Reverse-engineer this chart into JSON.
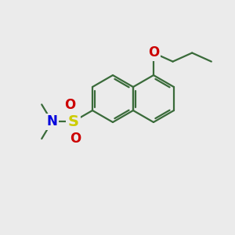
{
  "bg_color": "#ebebeb",
  "bond_color": "#3a6b3a",
  "S_color": "#cccc00",
  "O_color": "#cc0000",
  "N_color": "#0000dd",
  "line_width": 1.6,
  "font_size_S": 14,
  "font_size_ON": 12,
  "dpi": 100,
  "figsize": [
    3.0,
    3.0
  ],
  "xlim": [
    0,
    10
  ],
  "ylim": [
    0,
    10
  ]
}
